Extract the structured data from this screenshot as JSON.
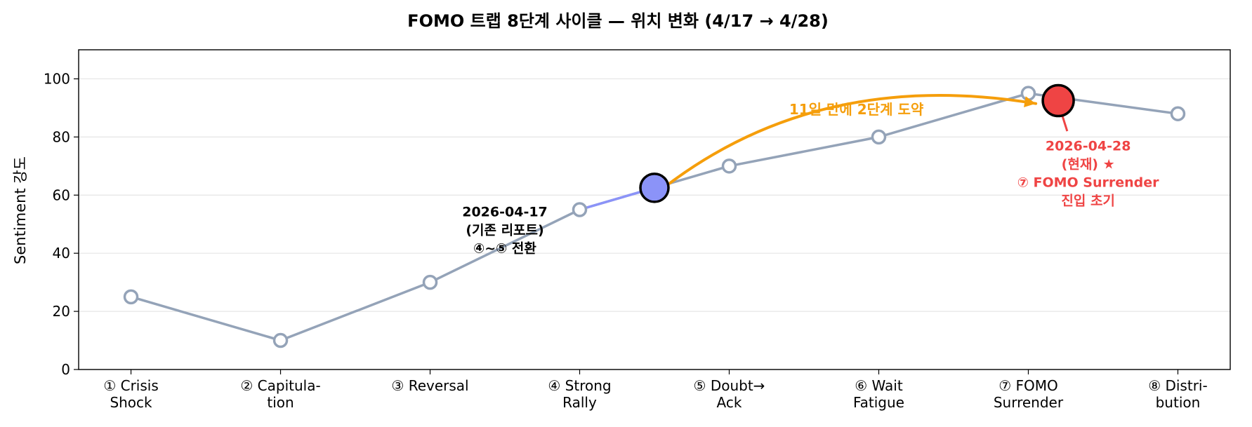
{
  "chart_data": {
    "type": "line",
    "title": "FOMO 트랩 8단계 사이클 — 위치 변화 (4/17 → 4/28)",
    "xlabel": "",
    "ylabel": "Sentiment 강도",
    "ylim": [
      0,
      110
    ],
    "xlim": [
      -0.35,
      7.35
    ],
    "yticks": [
      0,
      20,
      40,
      60,
      80,
      100
    ],
    "grid": "y",
    "categories": [
      [
        "① Crisis",
        "Shock"
      ],
      [
        "② Capitula-",
        "tion"
      ],
      [
        "③ Reversal"
      ],
      [
        "④ Strong",
        "Rally"
      ],
      [
        "⑤ Doubt→",
        "Ack"
      ],
      [
        "⑥ Wait",
        "Fatigue"
      ],
      [
        "⑦ FOMO",
        "Surrender"
      ],
      [
        "⑧ Distri-",
        "bution"
      ]
    ],
    "series": [
      {
        "name": "cycle",
        "x": [
          0,
          1,
          2,
          3,
          4,
          5,
          6,
          7
        ],
        "values": [
          25,
          10,
          30,
          55,
          70,
          80,
          95,
          88
        ],
        "color": "#94a3b8"
      }
    ],
    "segment_highlight": {
      "from": [
        3,
        55
      ],
      "to": [
        3.5,
        62.5
      ],
      "color": "#8b93f8"
    },
    "markers": [
      {
        "name": "previous-position",
        "x": 3.5,
        "y": 62.5,
        "color": "#8b93f8",
        "label": [
          "2026-04-17",
          "(기존 리포트)",
          "④~⑤ 전환"
        ]
      },
      {
        "name": "current-position",
        "x": 6.2,
        "y": 92.5,
        "color": "#ef4444",
        "label": [
          "2026-04-28",
          "(현재) ★",
          "⑦ FOMO Surrender",
          "진입 초기"
        ]
      }
    ],
    "arrow": {
      "label": "11일 만에 2단계 도약",
      "from": [
        3.6,
        64
      ],
      "to": [
        6.05,
        91.5
      ],
      "color": "#f59e0b"
    }
  }
}
